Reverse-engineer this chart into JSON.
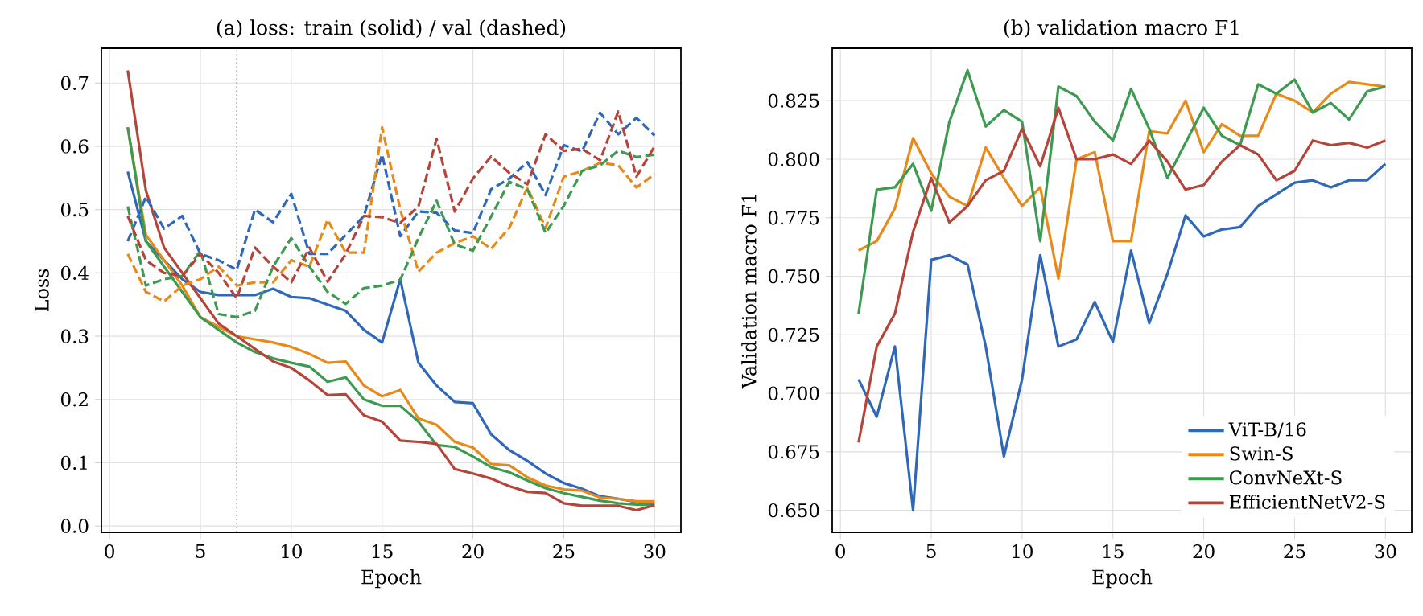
{
  "chart_data": [
    {
      "type": "line",
      "title": "(a) loss: train (solid) / val (dashed)",
      "xlabel": "Epoch",
      "ylabel": "Loss",
      "x": [
        1,
        2,
        3,
        4,
        5,
        6,
        7,
        8,
        9,
        10,
        11,
        12,
        13,
        14,
        15,
        16,
        17,
        18,
        19,
        20,
        21,
        22,
        23,
        24,
        25,
        26,
        27,
        28,
        29,
        30
      ],
      "xlim": [
        -0.45,
        31.45
      ],
      "ylim": [
        -0.01,
        0.755
      ],
      "xticks": [
        0,
        5,
        10,
        15,
        20,
        25,
        30
      ],
      "yticks": [
        {
          "value": 0,
          "label": "0.0"
        },
        0.1,
        0.2,
        0.3,
        0.4,
        0.5,
        0.6,
        0.7
      ],
      "grid": true,
      "ref_lines": [
        {
          "axis": "x",
          "value": 7,
          "color": "#808080",
          "line_style": "dotted"
        }
      ],
      "series": [
        {
          "color": "#3068b8",
          "line_style": "solid",
          "values": [
            0.56,
            0.45,
            0.42,
            0.39,
            0.37,
            0.365,
            0.365,
            0.365,
            0.375,
            0.362,
            0.36,
            0.35,
            0.34,
            0.31,
            0.29,
            0.39,
            0.258,
            0.222,
            0.196,
            0.194,
            0.145,
            0.12,
            0.103,
            0.083,
            0.068,
            0.059,
            0.047,
            0.043,
            0.038,
            0.036
          ]
        },
        {
          "color": "#e88a1a",
          "line_style": "solid",
          "values": [
            0.63,
            0.46,
            0.42,
            0.38,
            0.33,
            0.315,
            0.3,
            0.295,
            0.29,
            0.283,
            0.272,
            0.258,
            0.26,
            0.222,
            0.205,
            0.215,
            0.17,
            0.16,
            0.133,
            0.124,
            0.098,
            0.096,
            0.077,
            0.064,
            0.058,
            0.056,
            0.045,
            0.043,
            0.039,
            0.039
          ]
        },
        {
          "color": "#3d9a50",
          "line_style": "solid",
          "values": [
            0.63,
            0.45,
            0.41,
            0.37,
            0.33,
            0.31,
            0.29,
            0.275,
            0.265,
            0.258,
            0.252,
            0.228,
            0.235,
            0.2,
            0.19,
            0.19,
            0.165,
            0.128,
            0.125,
            0.11,
            0.093,
            0.085,
            0.072,
            0.06,
            0.052,
            0.046,
            0.04,
            0.036,
            0.034,
            0.033
          ]
        },
        {
          "color": "#b5443a",
          "line_style": "solid",
          "values": [
            0.72,
            0.53,
            0.44,
            0.4,
            0.36,
            0.32,
            0.3,
            0.28,
            0.26,
            0.25,
            0.23,
            0.207,
            0.208,
            0.175,
            0.165,
            0.135,
            0.133,
            0.13,
            0.09,
            0.083,
            0.075,
            0.063,
            0.054,
            0.052,
            0.036,
            0.032,
            0.032,
            0.032,
            0.025,
            0.033
          ]
        },
        {
          "color": "#3068b8",
          "line_style": "dashed",
          "values": [
            0.45,
            0.52,
            0.47,
            0.49,
            0.43,
            0.42,
            0.405,
            0.5,
            0.48,
            0.525,
            0.43,
            0.43,
            0.46,
            0.49,
            0.587,
            0.458,
            0.497,
            0.495,
            0.467,
            0.463,
            0.532,
            0.549,
            0.575,
            0.523,
            0.602,
            0.592,
            0.653,
            0.619,
            0.645,
            0.617
          ]
        },
        {
          "color": "#e88a1a",
          "line_style": "dashed",
          "values": [
            0.43,
            0.37,
            0.355,
            0.38,
            0.39,
            0.41,
            0.38,
            0.385,
            0.385,
            0.42,
            0.41,
            0.484,
            0.432,
            0.432,
            0.63,
            0.5,
            0.402,
            0.432,
            0.447,
            0.458,
            0.438,
            0.471,
            0.535,
            0.471,
            0.552,
            0.561,
            0.574,
            0.57,
            0.535,
            0.556
          ]
        },
        {
          "color": "#3d9a50",
          "line_style": "dashed",
          "values": [
            0.505,
            0.38,
            0.39,
            0.395,
            0.435,
            0.335,
            0.33,
            0.34,
            0.41,
            0.455,
            0.41,
            0.37,
            0.351,
            0.376,
            0.38,
            0.389,
            0.455,
            0.514,
            0.445,
            0.435,
            0.489,
            0.544,
            0.532,
            0.463,
            0.506,
            0.561,
            0.57,
            0.593,
            0.583,
            0.587
          ]
        },
        {
          "color": "#b5443a",
          "line_style": "dashed",
          "values": [
            0.49,
            0.42,
            0.4,
            0.395,
            0.43,
            0.4,
            0.36,
            0.44,
            0.41,
            0.385,
            0.44,
            0.386,
            0.43,
            0.49,
            0.488,
            0.479,
            0.505,
            0.612,
            0.497,
            0.549,
            0.584,
            0.558,
            0.54,
            0.619,
            0.593,
            0.596,
            0.578,
            0.655,
            0.552,
            0.6
          ]
        }
      ]
    },
    {
      "type": "line",
      "title": "(b) validation macro F1",
      "xlabel": "Epoch",
      "ylabel": "Validation macro F1",
      "x": [
        1,
        2,
        3,
        4,
        5,
        6,
        7,
        8,
        9,
        10,
        11,
        12,
        13,
        14,
        15,
        16,
        17,
        18,
        19,
        20,
        21,
        22,
        23,
        24,
        25,
        26,
        27,
        28,
        29,
        30
      ],
      "xlim": [
        -0.45,
        31.45
      ],
      "ylim": [
        0.6406,
        0.8474
      ],
      "xticks": [
        0,
        5,
        10,
        15,
        20,
        25,
        30
      ],
      "yticks": [
        {
          "value": 0.65,
          "label": "0.650"
        },
        0.675,
        {
          "value": 0.7,
          "label": "0.700"
        },
        0.725,
        {
          "value": 0.75,
          "label": "0.750"
        },
        0.775,
        {
          "value": 0.8,
          "label": "0.800"
        },
        0.825
      ],
      "grid": true,
      "legend": "bottom right",
      "series": [
        {
          "name": "ViT-B/16",
          "color": "#3068b8",
          "values": [
            0.706,
            0.69,
            0.72,
            0.65,
            0.757,
            0.759,
            0.755,
            0.72,
            0.673,
            0.706,
            0.759,
            0.72,
            0.723,
            0.739,
            0.722,
            0.761,
            0.73,
            0.751,
            0.776,
            0.767,
            0.77,
            0.771,
            0.78,
            0.785,
            0.79,
            0.791,
            0.788,
            0.791,
            0.791,
            0.798
          ]
        },
        {
          "name": "Swin-S",
          "color": "#e88a1a",
          "values": [
            0.761,
            0.765,
            0.779,
            0.809,
            0.794,
            0.784,
            0.78,
            0.805,
            0.792,
            0.78,
            0.788,
            0.749,
            0.8,
            0.803,
            0.765,
            0.765,
            0.812,
            0.811,
            0.825,
            0.803,
            0.815,
            0.81,
            0.81,
            0.828,
            0.825,
            0.82,
            0.828,
            0.833,
            0.832,
            0.831
          ]
        },
        {
          "name": "ConvNeXt-S",
          "color": "#3d9a50",
          "values": [
            0.734,
            0.787,
            0.788,
            0.798,
            0.778,
            0.816,
            0.838,
            0.814,
            0.821,
            0.816,
            0.765,
            0.831,
            0.827,
            0.816,
            0.808,
            0.83,
            0.813,
            0.792,
            0.807,
            0.822,
            0.81,
            0.806,
            0.832,
            0.828,
            0.834,
            0.82,
            0.824,
            0.817,
            0.829,
            0.831
          ]
        },
        {
          "name": "EfficientNetV2-S",
          "color": "#b5443a",
          "values": [
            0.679,
            0.72,
            0.734,
            0.769,
            0.792,
            0.773,
            0.78,
            0.791,
            0.795,
            0.813,
            0.797,
            0.822,
            0.8,
            0.8,
            0.802,
            0.798,
            0.808,
            0.799,
            0.787,
            0.789,
            0.799,
            0.806,
            0.802,
            0.791,
            0.795,
            0.808,
            0.806,
            0.807,
            0.805,
            0.808
          ]
        }
      ]
    }
  ]
}
